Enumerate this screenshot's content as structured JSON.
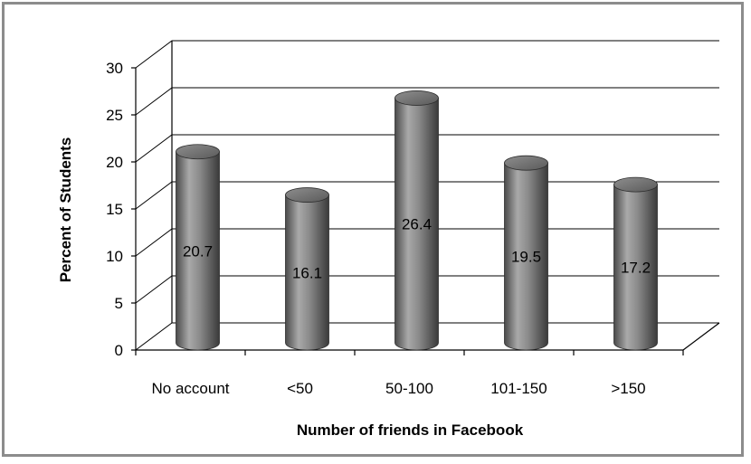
{
  "chart_data": {
    "type": "bar",
    "style": "3d-cylinder",
    "categories": [
      "No account",
      "<50",
      "50-100",
      "101-150",
      ">150"
    ],
    "values": [
      20.7,
      16.1,
      26.4,
      19.5,
      17.2
    ],
    "data_labels": [
      "20.7",
      "16.1",
      "26.4",
      "19.5",
      "17.2"
    ],
    "xlabel": "Number of friends in Facebook",
    "ylabel": "Percent of  Students",
    "ylim": [
      0,
      30
    ],
    "yticks": [
      "0",
      "5",
      "10",
      "15",
      "20",
      "25",
      "30"
    ],
    "grid": true,
    "legend": "none",
    "colors": {
      "bar": "#7a7a7a",
      "bar_light": "#bdbdbd",
      "bar_dark": "#3c3c3c",
      "frame": "#8c8c8c"
    }
  }
}
